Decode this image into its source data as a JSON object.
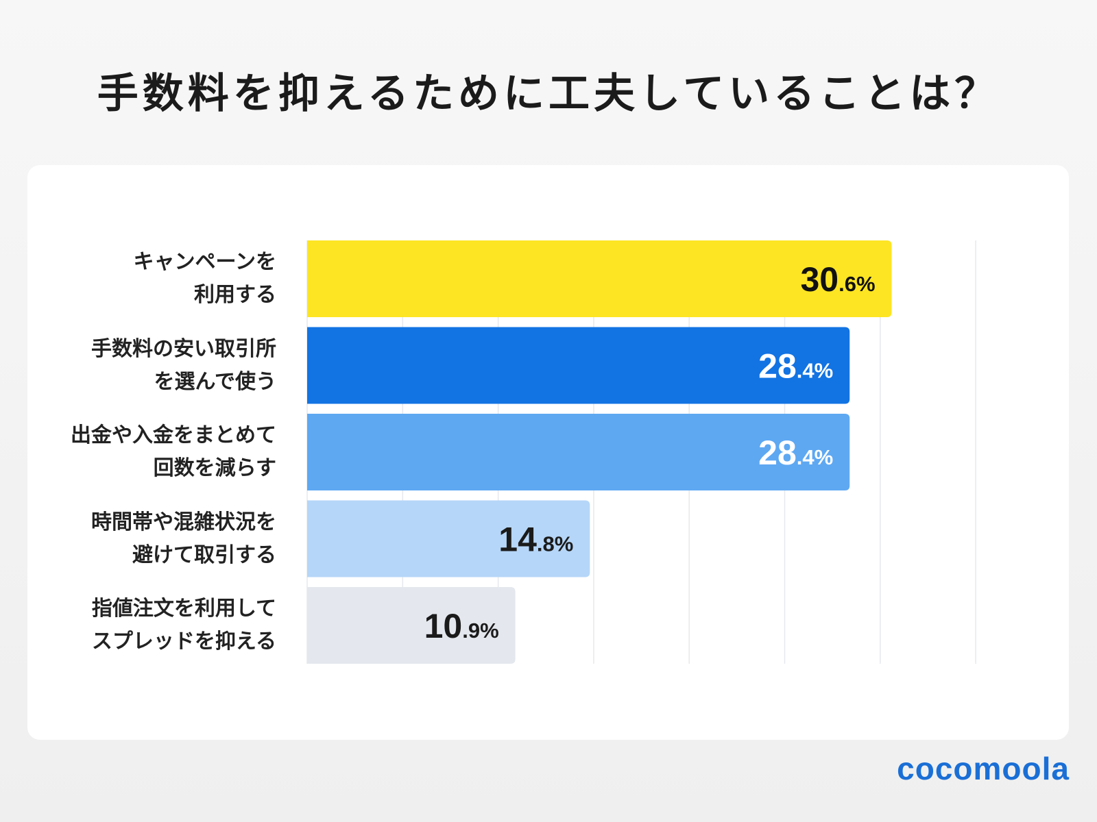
{
  "chart_data": {
    "type": "bar",
    "orientation": "horizontal",
    "title": "手数料を抑えるために工夫していることは？",
    "categories": [
      "キャンペーンを\n利用する",
      "手数料の安い取引所\nを選んで使う",
      "出金や入金をまとめて\n回数を減らす",
      "時間帯や混雑状況を\n避けて取引する",
      "指値注文を利用して\nスプレッドを抑える"
    ],
    "values": [
      30.6,
      28.4,
      28.4,
      14.8,
      10.9
    ],
    "value_labels": [
      {
        "int": "30",
        "dec": ".6%"
      },
      {
        "int": "28",
        "dec": ".4%"
      },
      {
        "int": "28",
        "dec": ".4%"
      },
      {
        "int": "14",
        "dec": ".8%"
      },
      {
        "int": "10",
        "dec": ".9%"
      }
    ],
    "bar_colors": [
      "#fde523",
      "#1273e3",
      "#5ea8f2",
      "#b5d6f8",
      "#e4e8ee"
    ],
    "label_colors": [
      "#111111",
      "#ffffff",
      "#ffffff",
      "#1b1b1b",
      "#1b1b1b"
    ],
    "xlim": [
      0,
      35
    ],
    "grid_step": 5,
    "grid": true,
    "xlabel": "",
    "ylabel": ""
  },
  "brand": {
    "logo": "cocomoola",
    "color": "#1a6fd6"
  }
}
